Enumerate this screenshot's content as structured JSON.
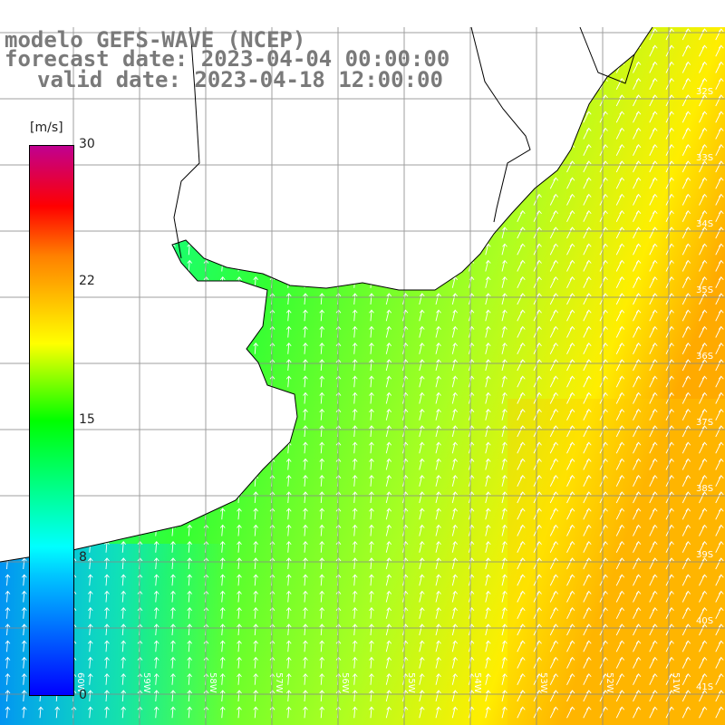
{
  "title": {
    "line1": "modelo GEFS-WAVE (NCEP)",
    "line2": "forecast date: 2023-04-04 00:00:00",
    "line3": "valid date: 2023-04-18 12:00:00"
  },
  "colorbar": {
    "unit": "[m/s]",
    "ticks": [
      "30",
      "22",
      "15",
      "8",
      "0"
    ],
    "min": 0,
    "max": 30
  },
  "lat_labels": [
    "32S",
    "33S",
    "34S",
    "35S",
    "36S",
    "37S",
    "38S",
    "39S",
    "40S",
    "41S"
  ],
  "lon_labels": [
    "60W",
    "59W",
    "58W",
    "57W",
    "56W",
    "55W",
    "54W",
    "53W",
    "52W",
    "51W"
  ]
}
